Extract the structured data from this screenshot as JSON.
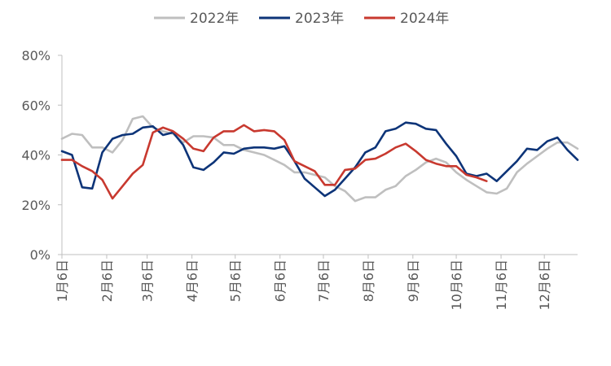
{
  "chart_data": {
    "type": "line",
    "title": "",
    "xlabel": "",
    "ylabel": "",
    "ylim": [
      0,
      80
    ],
    "yticks": [
      "0%",
      "20%",
      "40%",
      "60%",
      "80%"
    ],
    "grid": false,
    "legend_position": "top-center",
    "week_count": 52,
    "month_ticks": [
      {
        "label": "1月6日",
        "week": 1
      },
      {
        "label": "2月6日",
        "week": 5.43
      },
      {
        "label": "3月6日",
        "week": 9.43
      },
      {
        "label": "4月6日",
        "week": 13.86
      },
      {
        "label": "5月6日",
        "week": 18.14
      },
      {
        "label": "6月6日",
        "week": 22.57
      },
      {
        "label": "7月6日",
        "week": 26.86
      },
      {
        "label": "8月6日",
        "week": 31.29
      },
      {
        "label": "9月6日",
        "week": 35.71
      },
      {
        "label": "10月6日",
        "week": 40
      },
      {
        "label": "11月6日",
        "week": 44.43
      },
      {
        "label": "12月6日",
        "week": 48.71
      }
    ],
    "series": [
      {
        "name": "2022年",
        "color": "#bfbfbf",
        "values": [
          46.5,
          48.5,
          48,
          43,
          43,
          41,
          46,
          54.5,
          55.5,
          51,
          49.5,
          48.5,
          45,
          47.5,
          47.5,
          47,
          44,
          44,
          42,
          41,
          40,
          38,
          36,
          33,
          33,
          32,
          31,
          27.5,
          25.5,
          21.5,
          23,
          23,
          26,
          27.5,
          31.5,
          34,
          37,
          38.5,
          37,
          33,
          30,
          27.5,
          25,
          24.5,
          26.5,
          33,
          36.5,
          39.5,
          42.5,
          45,
          45,
          42.5
        ]
      },
      {
        "name": "2023年",
        "color": "#0d3478",
        "values": [
          41.5,
          40,
          27,
          26.5,
          41,
          46.5,
          48,
          48.5,
          51,
          51.5,
          48,
          49,
          44,
          35,
          34,
          37,
          41,
          40.5,
          42.5,
          43,
          43,
          42.5,
          43.5,
          37.5,
          30.5,
          27,
          23.5,
          26,
          30.5,
          35,
          41,
          43,
          49.5,
          50.5,
          53,
          52.5,
          50.5,
          50,
          44.5,
          39.5,
          32.5,
          31.5,
          32.5,
          29.5,
          33.5,
          37.5,
          42.5,
          42,
          45.5,
          47,
          42,
          38
        ]
      },
      {
        "name": "2024年",
        "color": "#c8392f",
        "values": [
          38,
          38,
          35.5,
          33.5,
          30,
          22.5,
          27.5,
          32.5,
          36,
          49,
          51,
          49.5,
          46.5,
          42.5,
          41.5,
          47,
          49.5,
          49.5,
          52,
          49.5,
          50,
          49.5,
          46,
          37.5,
          35.5,
          33.5,
          28,
          28,
          34,
          34.5,
          38,
          38.5,
          40.5,
          43,
          44.5,
          41.5,
          38,
          36.5,
          35.5,
          35.5,
          32,
          31,
          29.5
        ]
      }
    ]
  }
}
